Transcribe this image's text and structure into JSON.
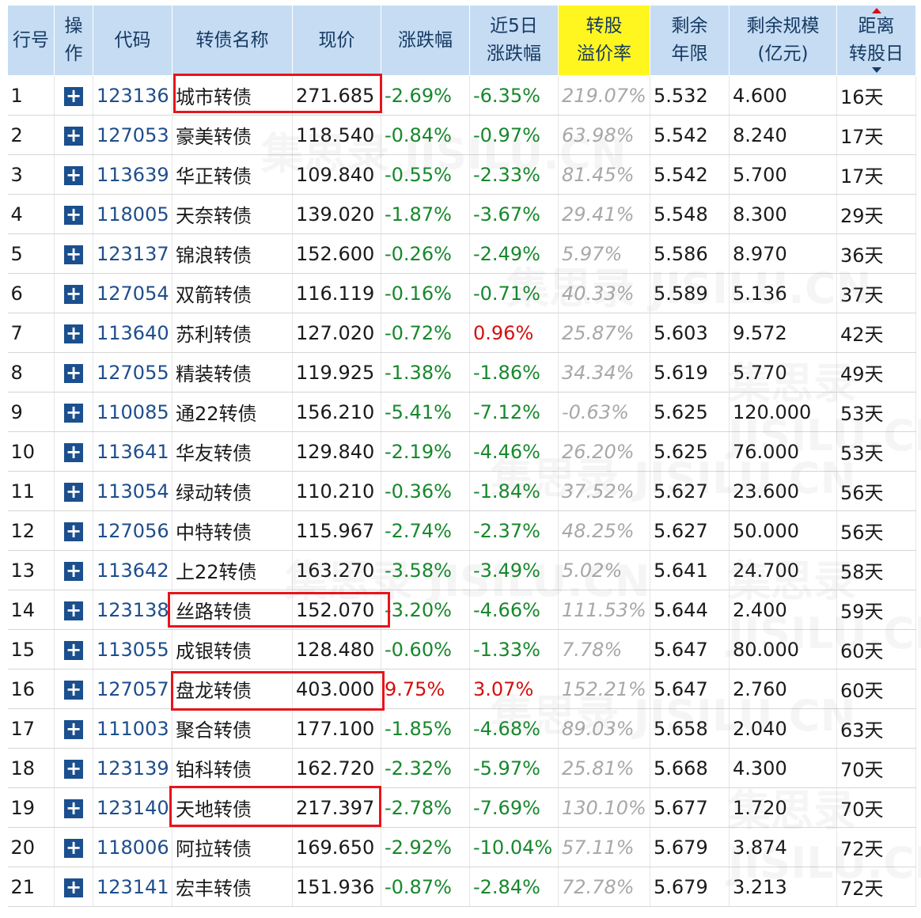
{
  "headers": {
    "row_no": "行号",
    "op": "操作",
    "code": "代码",
    "name": "转债名称",
    "price": "现价",
    "chg": "涨跌幅",
    "chg5": "近5日涨跌幅",
    "premium": "转股溢价率",
    "years": "剩余年限",
    "scale": "剩余规模(亿元)",
    "days": "距离转股日"
  },
  "highlight_color": "#fff51f",
  "mark_color": "#e8141b",
  "icons": {
    "row_action": "plus-icon",
    "sort": "sort-arrows-icon"
  },
  "rows": [
    {
      "no": "1",
      "code": "123136",
      "name": "城市转债",
      "price": "271.685",
      "chg": "-2.69%",
      "chg5": "-6.35%",
      "premium": "219.07%",
      "years": "5.532",
      "scale": "4.600",
      "days": "16天"
    },
    {
      "no": "2",
      "code": "127053",
      "name": "豪美转债",
      "price": "118.540",
      "chg": "-0.84%",
      "chg5": "-0.97%",
      "premium": "63.98%",
      "years": "5.542",
      "scale": "8.240",
      "days": "17天"
    },
    {
      "no": "3",
      "code": "113639",
      "name": "华正转债",
      "price": "109.840",
      "chg": "-0.55%",
      "chg5": "-2.33%",
      "premium": "81.45%",
      "years": "5.542",
      "scale": "5.700",
      "days": "17天"
    },
    {
      "no": "4",
      "code": "118005",
      "name": "天奈转债",
      "price": "139.020",
      "chg": "-1.87%",
      "chg5": "-3.67%",
      "premium": "29.41%",
      "years": "5.548",
      "scale": "8.300",
      "days": "29天"
    },
    {
      "no": "5",
      "code": "123137",
      "name": "锦浪转债",
      "price": "152.600",
      "chg": "-0.26%",
      "chg5": "-2.49%",
      "premium": "5.97%",
      "years": "5.586",
      "scale": "8.970",
      "days": "36天"
    },
    {
      "no": "6",
      "code": "127054",
      "name": "双箭转债",
      "price": "116.119",
      "chg": "-0.16%",
      "chg5": "-0.71%",
      "premium": "40.33%",
      "years": "5.589",
      "scale": "5.136",
      "days": "37天"
    },
    {
      "no": "7",
      "code": "113640",
      "name": "苏利转债",
      "price": "127.020",
      "chg": "-0.72%",
      "chg5": "0.96%",
      "premium": "25.87%",
      "years": "5.603",
      "scale": "9.572",
      "days": "42天"
    },
    {
      "no": "8",
      "code": "127055",
      "name": "精装转债",
      "price": "119.925",
      "chg": "-1.38%",
      "chg5": "-1.86%",
      "premium": "34.34%",
      "years": "5.619",
      "scale": "5.770",
      "days": "49天"
    },
    {
      "no": "9",
      "code": "110085",
      "name": "通22转债",
      "price": "156.210",
      "chg": "-5.41%",
      "chg5": "-7.12%",
      "premium": "-0.63%",
      "years": "5.625",
      "scale": "120.000",
      "days": "53天"
    },
    {
      "no": "10",
      "code": "113641",
      "name": "华友转债",
      "price": "129.840",
      "chg": "-2.19%",
      "chg5": "-4.46%",
      "premium": "26.20%",
      "years": "5.625",
      "scale": "76.000",
      "days": "53天"
    },
    {
      "no": "11",
      "code": "113054",
      "name": "绿动转债",
      "price": "110.210",
      "chg": "-0.36%",
      "chg5": "-1.84%",
      "premium": "37.52%",
      "years": "5.627",
      "scale": "23.600",
      "days": "56天"
    },
    {
      "no": "12",
      "code": "127056",
      "name": "中特转债",
      "price": "115.967",
      "chg": "-2.74%",
      "chg5": "-2.37%",
      "premium": "48.25%",
      "years": "5.627",
      "scale": "50.000",
      "days": "56天"
    },
    {
      "no": "13",
      "code": "113642",
      "name": "上22转债",
      "price": "163.270",
      "chg": "-3.58%",
      "chg5": "-3.49%",
      "premium": "5.02%",
      "years": "5.641",
      "scale": "24.700",
      "days": "58天"
    },
    {
      "no": "14",
      "code": "123138",
      "name": "丝路转债",
      "price": "152.070",
      "chg": "-3.20%",
      "chg5": "-4.66%",
      "premium": "111.53%",
      "years": "5.644",
      "scale": "2.400",
      "days": "59天"
    },
    {
      "no": "15",
      "code": "113055",
      "name": "成银转债",
      "price": "128.480",
      "chg": "-0.60%",
      "chg5": "-1.33%",
      "premium": "7.78%",
      "years": "5.647",
      "scale": "80.000",
      "days": "60天"
    },
    {
      "no": "16",
      "code": "127057",
      "name": "盘龙转债",
      "price": "403.000",
      "chg": "9.75%",
      "chg5": "3.07%",
      "premium": "152.21%",
      "years": "5.647",
      "scale": "2.760",
      "days": "60天"
    },
    {
      "no": "17",
      "code": "111003",
      "name": "聚合转债",
      "price": "177.100",
      "chg": "-1.85%",
      "chg5": "-4.68%",
      "premium": "89.03%",
      "years": "5.658",
      "scale": "2.040",
      "days": "63天"
    },
    {
      "no": "18",
      "code": "123139",
      "name": "铂科转债",
      "price": "162.720",
      "chg": "-2.32%",
      "chg5": "-5.97%",
      "premium": "25.81%",
      "years": "5.668",
      "scale": "4.300",
      "days": "70天"
    },
    {
      "no": "19",
      "code": "123140",
      "name": "天地转债",
      "price": "217.397",
      "chg": "-2.78%",
      "chg5": "-7.69%",
      "premium": "130.10%",
      "years": "5.677",
      "scale": "1.720",
      "days": "70天"
    },
    {
      "no": "20",
      "code": "118006",
      "name": "阿拉转债",
      "price": "169.650",
      "chg": "-2.92%",
      "chg5": "-10.04%",
      "premium": "57.11%",
      "years": "5.679",
      "scale": "3.874",
      "days": "72天"
    },
    {
      "no": "21",
      "code": "123141",
      "name": "宏丰转债",
      "price": "151.936",
      "chg": "-0.87%",
      "chg5": "-2.84%",
      "premium": "72.78%",
      "years": "5.679",
      "scale": "3.213",
      "days": "72天"
    }
  ],
  "marked_rows": [
    "1",
    "14",
    "16",
    "19"
  ],
  "watermark": "集思录 JISILU.CN"
}
